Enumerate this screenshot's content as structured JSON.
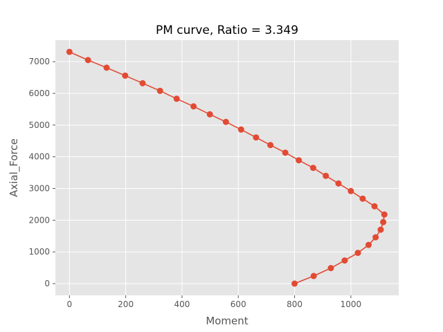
{
  "chart_data": {
    "type": "line",
    "title": "PM curve, Ratio = 3.349",
    "xlabel": "Moment",
    "ylabel": "Axial_Force",
    "xlim": [
      -50,
      1170
    ],
    "ylim": [
      -370,
      7680
    ],
    "xticks": [
      0,
      200,
      400,
      600,
      800,
      1000
    ],
    "yticks": [
      0,
      1000,
      2000,
      3000,
      4000,
      5000,
      6000,
      7000
    ],
    "grid": true,
    "legend": "none",
    "colors": {
      "series": "#e24a33",
      "plot_background": "#e5e5e5",
      "grid": "#ffffff",
      "tick_text": "#555555"
    },
    "series": [
      {
        "x": [
          0,
          66,
          132,
          198,
          260,
          322,
          381,
          441,
          499,
          556,
          610,
          663,
          714,
          767,
          815,
          866,
          911,
          956,
          1000,
          1042,
          1084,
          1119,
          1115,
          1106,
          1088,
          1063,
          1025,
          978,
          929,
          868,
          800
        ],
        "y": [
          7310,
          7050,
          6810,
          6560,
          6320,
          6080,
          5830,
          5590,
          5340,
          5100,
          4860,
          4610,
          4370,
          4130,
          3890,
          3650,
          3400,
          3160,
          2920,
          2680,
          2440,
          2180,
          1940,
          1700,
          1460,
          1220,
          970,
          730,
          490,
          240,
          0
        ]
      }
    ]
  }
}
